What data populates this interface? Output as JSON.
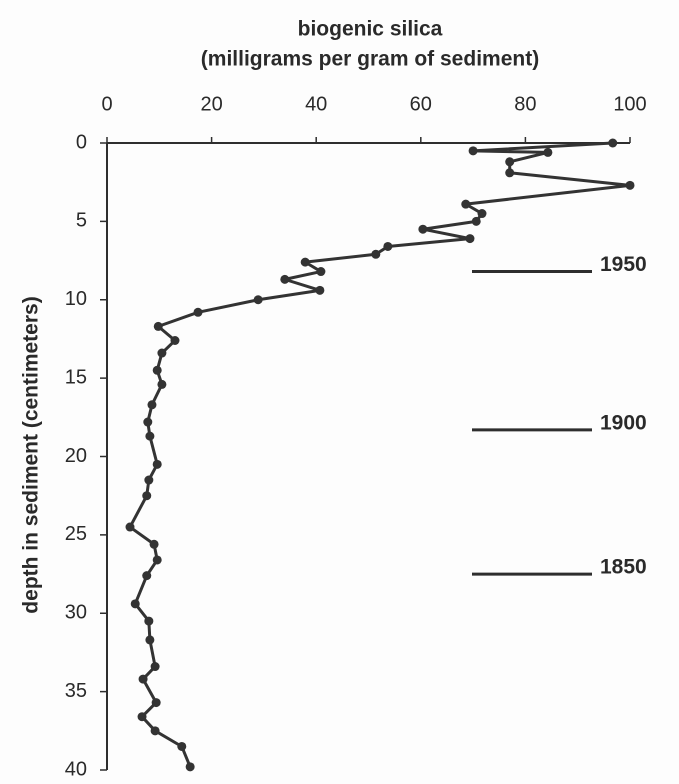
{
  "chart_data": {
    "type": "line",
    "title_lines": [
      "biogenic silica",
      "(milligrams per gram of sediment)"
    ],
    "y_label": "depth in sediment (centimeters)",
    "x": [
      96.7,
      70,
      84.3,
      77,
      77,
      100,
      68.6,
      71.7,
      70.6,
      60.4,
      69.4,
      53.7,
      51.4,
      37.9,
      40.9,
      34,
      40.7,
      28.9,
      17.4,
      9.8,
      13,
      10.5,
      9.6,
      10.5,
      8.6,
      7.8,
      8.2,
      9.6,
      8,
      7.6,
      4.4,
      9,
      9.6,
      7.6,
      5.4,
      8,
      8.2,
      9.2,
      6.9,
      9.4,
      6.7,
      9.2,
      14.3,
      15.9
    ],
    "y": [
      0,
      0.5,
      0.6,
      1.2,
      1.9,
      2.7,
      3.9,
      4.5,
      5,
      5.5,
      6.1,
      6.6,
      7.1,
      7.6,
      8.2,
      8.7,
      9.4,
      10,
      10.8,
      11.7,
      12.6,
      13.4,
      14.5,
      15.4,
      16.7,
      17.8,
      18.7,
      20.5,
      21.5,
      22.5,
      24.5,
      25.6,
      26.6,
      27.6,
      29.4,
      30.5,
      31.7,
      33.4,
      34.2,
      35.7,
      36.6,
      37.5,
      38.5,
      39.8
    ],
    "color": "#333333",
    "xlim": [
      0,
      100
    ],
    "xticks": [
      0,
      20,
      40,
      60,
      80,
      100
    ],
    "ylim": [
      0,
      40
    ],
    "yticks": [
      0,
      5,
      10,
      15,
      20,
      25,
      30,
      35,
      40
    ],
    "y_inverted": true,
    "x_axis_position": "top",
    "annotations": [
      {
        "label": "1950",
        "y": 8.2
      },
      {
        "label": "1900",
        "y": 18.3
      },
      {
        "label": "1850",
        "y": 27.5
      }
    ]
  }
}
